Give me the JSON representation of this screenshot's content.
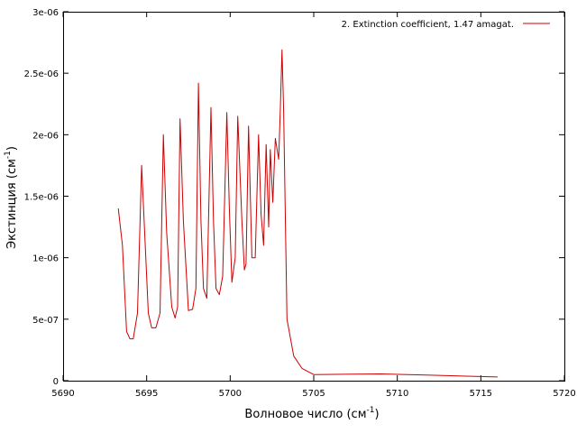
{
  "chart_data": {
    "type": "line",
    "xlabel": "Волновое число (см",
    "xlabel_sup": "-1",
    "xlabel_suffix": ")",
    "ylabel": "Экстинция (см",
    "ylabel_sup": "-1",
    "ylabel_suffix": ")",
    "xlim": [
      5690,
      5720
    ],
    "ylim": [
      0,
      3e-06
    ],
    "xticks": [
      5690,
      5695,
      5700,
      5705,
      5710,
      5715,
      5720
    ],
    "xtick_labels": [
      "5690",
      "5695",
      "5700",
      "5705",
      "5710",
      "5715",
      "5720"
    ],
    "yticks": [
      0,
      5e-07,
      1e-06,
      1.5e-06,
      2e-06,
      2.5e-06,
      3e-06
    ],
    "ytick_labels": [
      "0",
      "5e-07",
      "1e-06",
      "1.5e-06",
      "2e-06",
      "2.5e-06",
      "3e-06"
    ],
    "grid": false,
    "legend_position": "top-right",
    "series": [
      {
        "name": "2. Extinction coefficient, 1.47 amagat.",
        "color": "#cc0000",
        "x": [
          5693.3,
          5693.55,
          5693.8,
          5694.0,
          5694.2,
          5694.45,
          5694.7,
          5694.9,
          5695.1,
          5695.3,
          5695.55,
          5695.8,
          5696.0,
          5696.2,
          5696.5,
          5696.7,
          5696.85,
          5697.0,
          5697.2,
          5697.5,
          5697.75,
          5697.95,
          5698.1,
          5698.25,
          5698.4,
          5698.6,
          5698.85,
          5699.0,
          5699.15,
          5699.35,
          5699.55,
          5699.8,
          5699.95,
          5700.1,
          5700.3,
          5700.45,
          5700.7,
          5700.85,
          5700.95,
          5701.1,
          5701.3,
          5701.5,
          5701.7,
          5701.85,
          5702.0,
          5702.15,
          5702.3,
          5702.4,
          5702.55,
          5702.7,
          5702.9,
          5703.0,
          5703.1,
          5703.2,
          5703.4,
          5703.8,
          5704.3,
          5705.0,
          5709.0,
          5712.0,
          5716.0
        ],
        "y": [
          1.4e-06,
          1.1e-06,
          4e-07,
          3.4e-07,
          3.4e-07,
          5.5e-07,
          1.75e-06,
          1.15e-06,
          5.5e-07,
          4.3e-07,
          4.3e-07,
          5.5e-07,
          2e-06,
          1.2e-06,
          6e-07,
          5.1e-07,
          6e-07,
          2.13e-06,
          1.3e-06,
          5.7e-07,
          5.8e-07,
          7.5e-07,
          2.42e-06,
          1.3e-06,
          7.5e-07,
          6.7e-07,
          2.22e-06,
          1.3e-06,
          7.5e-07,
          7e-07,
          8.5e-07,
          2.18e-06,
          1.4e-06,
          8e-07,
          1e-06,
          2.15e-06,
          1.3e-06,
          9e-07,
          9.5e-07,
          2.07e-06,
          1e-06,
          1e-06,
          2e-06,
          1.35e-06,
          1.1e-06,
          1.92e-06,
          1.25e-06,
          1.88e-06,
          1.45e-06,
          1.97e-06,
          1.8e-06,
          2.2e-06,
          2.69e-06,
          2.2e-06,
          5e-07,
          2e-07,
          1e-07,
          5e-08,
          5.5e-08,
          4.5e-08,
          3e-08
        ]
      }
    ]
  }
}
